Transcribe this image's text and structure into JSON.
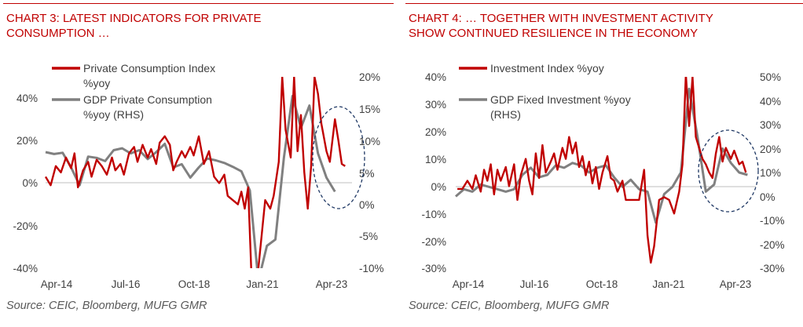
{
  "charts": [
    {
      "title_line1": "CHART 3: LATEST INDICATORS FOR PRIVATE",
      "title_line2": "CONSUMPTION …",
      "source": "Source: CEIC, Bloomberg, MUFG GMR",
      "legend": [
        {
          "line1": "Private Consumption Index",
          "line2": "%yoy",
          "color": "#c00000"
        },
        {
          "line1": "GDP Private Consumption",
          "line2": "%yoy (RHS)",
          "color": "#808080"
        }
      ],
      "left_ticks": [
        "40%",
        "20%",
        "0%",
        "-20%",
        "-40%"
      ],
      "right_ticks": [
        "20%",
        "15%",
        "10%",
        "5%",
        "0%",
        "-5%",
        "-10%"
      ],
      "x_ticks": [
        "Apr-14",
        "Jul-16",
        "Oct-18",
        "Jan-21",
        "Apr-23"
      ]
    },
    {
      "title_line1": "CHART 4: … TOGETHER WITH INVESTMENT ACTIVITY",
      "title_line2": "SHOW CONTINUED RESILIENCE IN THE ECONOMY",
      "source": "Source: CEIC, Bloomberg, MUFG GMR",
      "legend": [
        {
          "line1": "Investment Index %yoy",
          "line2": "",
          "color": "#c00000"
        },
        {
          "line1": "GDP Fixed Investment %yoy",
          "line2": "(RHS)",
          "color": "#808080"
        }
      ],
      "left_ticks": [
        "40%",
        "30%",
        "20%",
        "10%",
        "0%",
        "-10%",
        "-20%",
        "-30%"
      ],
      "right_ticks": [
        "50%",
        "40%",
        "30%",
        "20%",
        "10%",
        "0%",
        "-10%",
        "-20%",
        "-30%"
      ],
      "x_ticks": [
        "Apr-14",
        "Jul-16",
        "Oct-18",
        "Jan-21",
        "Apr-23"
      ]
    }
  ],
  "chart_data": [
    {
      "type": "line",
      "x_range": [
        "2014-04",
        "2023-04"
      ],
      "left_ylim": [
        -40,
        50
      ],
      "right_ylim": [
        -10,
        20
      ],
      "series": [
        {
          "name": "Private Consumption Index %yoy",
          "axis": "left",
          "color": "#c00000",
          "points": [
            [
              2014.25,
              3
            ],
            [
              2014.4,
              -1
            ],
            [
              2014.55,
              8
            ],
            [
              2014.7,
              5
            ],
            [
              2014.85,
              12
            ],
            [
              2015.0,
              7
            ],
            [
              2015.1,
              14
            ],
            [
              2015.2,
              -2
            ],
            [
              2015.35,
              6
            ],
            [
              2015.5,
              10
            ],
            [
              2015.6,
              3
            ],
            [
              2015.75,
              11
            ],
            [
              2015.9,
              8
            ],
            [
              2016.05,
              4
            ],
            [
              2016.2,
              12
            ],
            [
              2016.3,
              6
            ],
            [
              2016.45,
              9
            ],
            [
              2016.55,
              4
            ],
            [
              2016.7,
              14
            ],
            [
              2016.85,
              17
            ],
            [
              2016.95,
              10
            ],
            [
              2017.1,
              18
            ],
            [
              2017.25,
              12
            ],
            [
              2017.35,
              16
            ],
            [
              2017.5,
              9
            ],
            [
              2017.6,
              19
            ],
            [
              2017.75,
              22
            ],
            [
              2017.9,
              18
            ],
            [
              2018.0,
              6
            ],
            [
              2018.1,
              10
            ],
            [
              2018.25,
              15
            ],
            [
              2018.35,
              12
            ],
            [
              2018.5,
              17
            ],
            [
              2018.6,
              13
            ],
            [
              2018.75,
              22
            ],
            [
              2018.9,
              9
            ],
            [
              2019.05,
              15
            ],
            [
              2019.2,
              3
            ],
            [
              2019.35,
              0
            ],
            [
              2019.5,
              4
            ],
            [
              2019.6,
              -6
            ],
            [
              2019.75,
              -8
            ],
            [
              2019.9,
              -10
            ],
            [
              2020.0,
              -4
            ],
            [
              2020.1,
              -12
            ],
            [
              2020.2,
              -2
            ],
            [
              2020.3,
              -45
            ],
            [
              2020.45,
              -48
            ],
            [
              2020.55,
              -32
            ],
            [
              2020.7,
              -8
            ],
            [
              2020.85,
              -12
            ],
            [
              2020.95,
              -6
            ],
            [
              2021.1,
              10
            ],
            [
              2021.2,
              50
            ],
            [
              2021.3,
              25
            ],
            [
              2021.45,
              12
            ],
            [
              2021.55,
              50
            ],
            [
              2021.65,
              15
            ],
            [
              2021.75,
              32
            ],
            [
              2021.85,
              5
            ],
            [
              2021.95,
              -12
            ],
            [
              2022.05,
              8
            ],
            [
              2022.15,
              50
            ],
            [
              2022.25,
              42
            ],
            [
              2022.35,
              28
            ],
            [
              2022.5,
              15
            ],
            [
              2022.6,
              10
            ],
            [
              2022.75,
              30
            ],
            [
              2022.85,
              20
            ],
            [
              2022.95,
              9
            ],
            [
              2023.05,
              8
            ]
          ]
        },
        {
          "name": "GDP Private Consumption %yoy (RHS)",
          "axis": "right",
          "color": "#808080",
          "points": [
            [
              2014.25,
              8.2
            ],
            [
              2014.5,
              7.9
            ],
            [
              2014.75,
              8.1
            ],
            [
              2015.0,
              5.8
            ],
            [
              2015.25,
              3.0
            ],
            [
              2015.5,
              7.5
            ],
            [
              2015.75,
              7.3
            ],
            [
              2016.0,
              6.8
            ],
            [
              2016.25,
              8.5
            ],
            [
              2016.5,
              8.8
            ],
            [
              2016.75,
              8.0
            ],
            [
              2017.0,
              8.5
            ],
            [
              2017.25,
              7.1
            ],
            [
              2017.5,
              8.2
            ],
            [
              2017.75,
              9.5
            ],
            [
              2018.0,
              5.8
            ],
            [
              2018.25,
              6.3
            ],
            [
              2018.5,
              4.2
            ],
            [
              2018.75,
              5.8
            ],
            [
              2019.0,
              7.2
            ],
            [
              2019.25,
              6.9
            ],
            [
              2019.5,
              6.5
            ],
            [
              2019.75,
              5.9
            ],
            [
              2020.0,
              5.2
            ],
            [
              2020.25,
              2.2
            ],
            [
              2020.5,
              -12
            ],
            [
              2020.75,
              -6.5
            ],
            [
              2021.0,
              -5.5
            ],
            [
              2021.25,
              7.3
            ],
            [
              2021.5,
              17
            ],
            [
              2021.75,
              12
            ],
            [
              2022.0,
              15.5
            ],
            [
              2022.25,
              8
            ],
            [
              2022.5,
              4.2
            ],
            [
              2022.75,
              2.0
            ]
          ]
        }
      ]
    },
    {
      "type": "line",
      "x_range": [
        "2014-04",
        "2023-04"
      ],
      "left_ylim": [
        -30,
        40
      ],
      "right_ylim": [
        -30,
        50
      ],
      "series": [
        {
          "name": "Investment Index %yoy",
          "axis": "left",
          "color": "#c00000",
          "points": [
            [
              2014.3,
              -1
            ],
            [
              2014.45,
              -1
            ],
            [
              2014.6,
              2
            ],
            [
              2014.75,
              -1
            ],
            [
              2014.85,
              4
            ],
            [
              2015.0,
              -2
            ],
            [
              2015.1,
              6
            ],
            [
              2015.2,
              2
            ],
            [
              2015.3,
              8
            ],
            [
              2015.4,
              -3
            ],
            [
              2015.5,
              6
            ],
            [
              2015.6,
              2
            ],
            [
              2015.75,
              7
            ],
            [
              2015.85,
              0
            ],
            [
              2016.0,
              8
            ],
            [
              2016.1,
              -5
            ],
            [
              2016.2,
              4
            ],
            [
              2016.35,
              10
            ],
            [
              2016.45,
              2
            ],
            [
              2016.55,
              -3
            ],
            [
              2016.65,
              12
            ],
            [
              2016.75,
              3
            ],
            [
              2016.85,
              15
            ],
            [
              2016.95,
              5
            ],
            [
              2017.1,
              9
            ],
            [
              2017.2,
              12
            ],
            [
              2017.3,
              6
            ],
            [
              2017.45,
              14
            ],
            [
              2017.55,
              10
            ],
            [
              2017.65,
              18
            ],
            [
              2017.75,
              12
            ],
            [
              2017.85,
              16
            ],
            [
              2017.95,
              7
            ],
            [
              2018.05,
              11
            ],
            [
              2018.15,
              4
            ],
            [
              2018.25,
              9
            ],
            [
              2018.35,
              1
            ],
            [
              2018.45,
              7
            ],
            [
              2018.55,
              -1
            ],
            [
              2018.65,
              5
            ],
            [
              2018.8,
              11
            ],
            [
              2018.9,
              3
            ],
            [
              2019.0,
              2
            ],
            [
              2019.1,
              -2
            ],
            [
              2019.25,
              2
            ],
            [
              2019.35,
              -5
            ],
            [
              2019.5,
              -5
            ],
            [
              2019.6,
              -5
            ],
            [
              2019.75,
              -5
            ],
            [
              2019.9,
              6
            ],
            [
              2020.0,
              -18
            ],
            [
              2020.1,
              -28
            ],
            [
              2020.2,
              -22
            ],
            [
              2020.35,
              -5
            ],
            [
              2020.5,
              -4
            ],
            [
              2020.65,
              -5
            ],
            [
              2020.8,
              -10
            ],
            [
              2020.95,
              -2
            ],
            [
              2021.05,
              8
            ],
            [
              2021.15,
              41
            ],
            [
              2021.25,
              22
            ],
            [
              2021.35,
              40
            ],
            [
              2021.45,
              18
            ],
            [
              2021.55,
              14
            ],
            [
              2021.65,
              10
            ],
            [
              2021.75,
              8
            ],
            [
              2021.85,
              5
            ],
            [
              2021.95,
              3
            ],
            [
              2022.05,
              12
            ],
            [
              2022.15,
              18
            ],
            [
              2022.25,
              9
            ],
            [
              2022.35,
              14
            ],
            [
              2022.5,
              10
            ],
            [
              2022.6,
              13
            ],
            [
              2022.75,
              8
            ],
            [
              2022.85,
              9
            ],
            [
              2022.95,
              5
            ]
          ]
        },
        {
          "name": "GDP Fixed Investment %yoy (RHS)",
          "axis": "right",
          "color": "#808080",
          "points": [
            [
              2014.25,
              0
            ],
            [
              2014.5,
              3
            ],
            [
              2014.75,
              2
            ],
            [
              2015.0,
              5
            ],
            [
              2015.25,
              4
            ],
            [
              2015.5,
              3
            ],
            [
              2015.75,
              2
            ],
            [
              2016.0,
              3
            ],
            [
              2016.25,
              9
            ],
            [
              2016.5,
              12
            ],
            [
              2016.75,
              8
            ],
            [
              2017.0,
              9
            ],
            [
              2017.25,
              13
            ],
            [
              2017.5,
              12
            ],
            [
              2017.75,
              14
            ],
            [
              2018.0,
              13
            ],
            [
              2018.25,
              10
            ],
            [
              2018.5,
              12
            ],
            [
              2018.75,
              13
            ],
            [
              2019.0,
              8
            ],
            [
              2019.25,
              4
            ],
            [
              2019.5,
              7
            ],
            [
              2019.75,
              3
            ],
            [
              2020.0,
              2
            ],
            [
              2020.25,
              -11
            ],
            [
              2020.5,
              1
            ],
            [
              2020.75,
              4
            ],
            [
              2021.0,
              10
            ],
            [
              2021.25,
              45
            ],
            [
              2021.5,
              25
            ],
            [
              2021.75,
              2
            ],
            [
              2022.0,
              5
            ],
            [
              2022.25,
              20
            ],
            [
              2022.5,
              14
            ],
            [
              2022.75,
              10
            ],
            [
              2023.0,
              9
            ]
          ]
        }
      ]
    }
  ]
}
